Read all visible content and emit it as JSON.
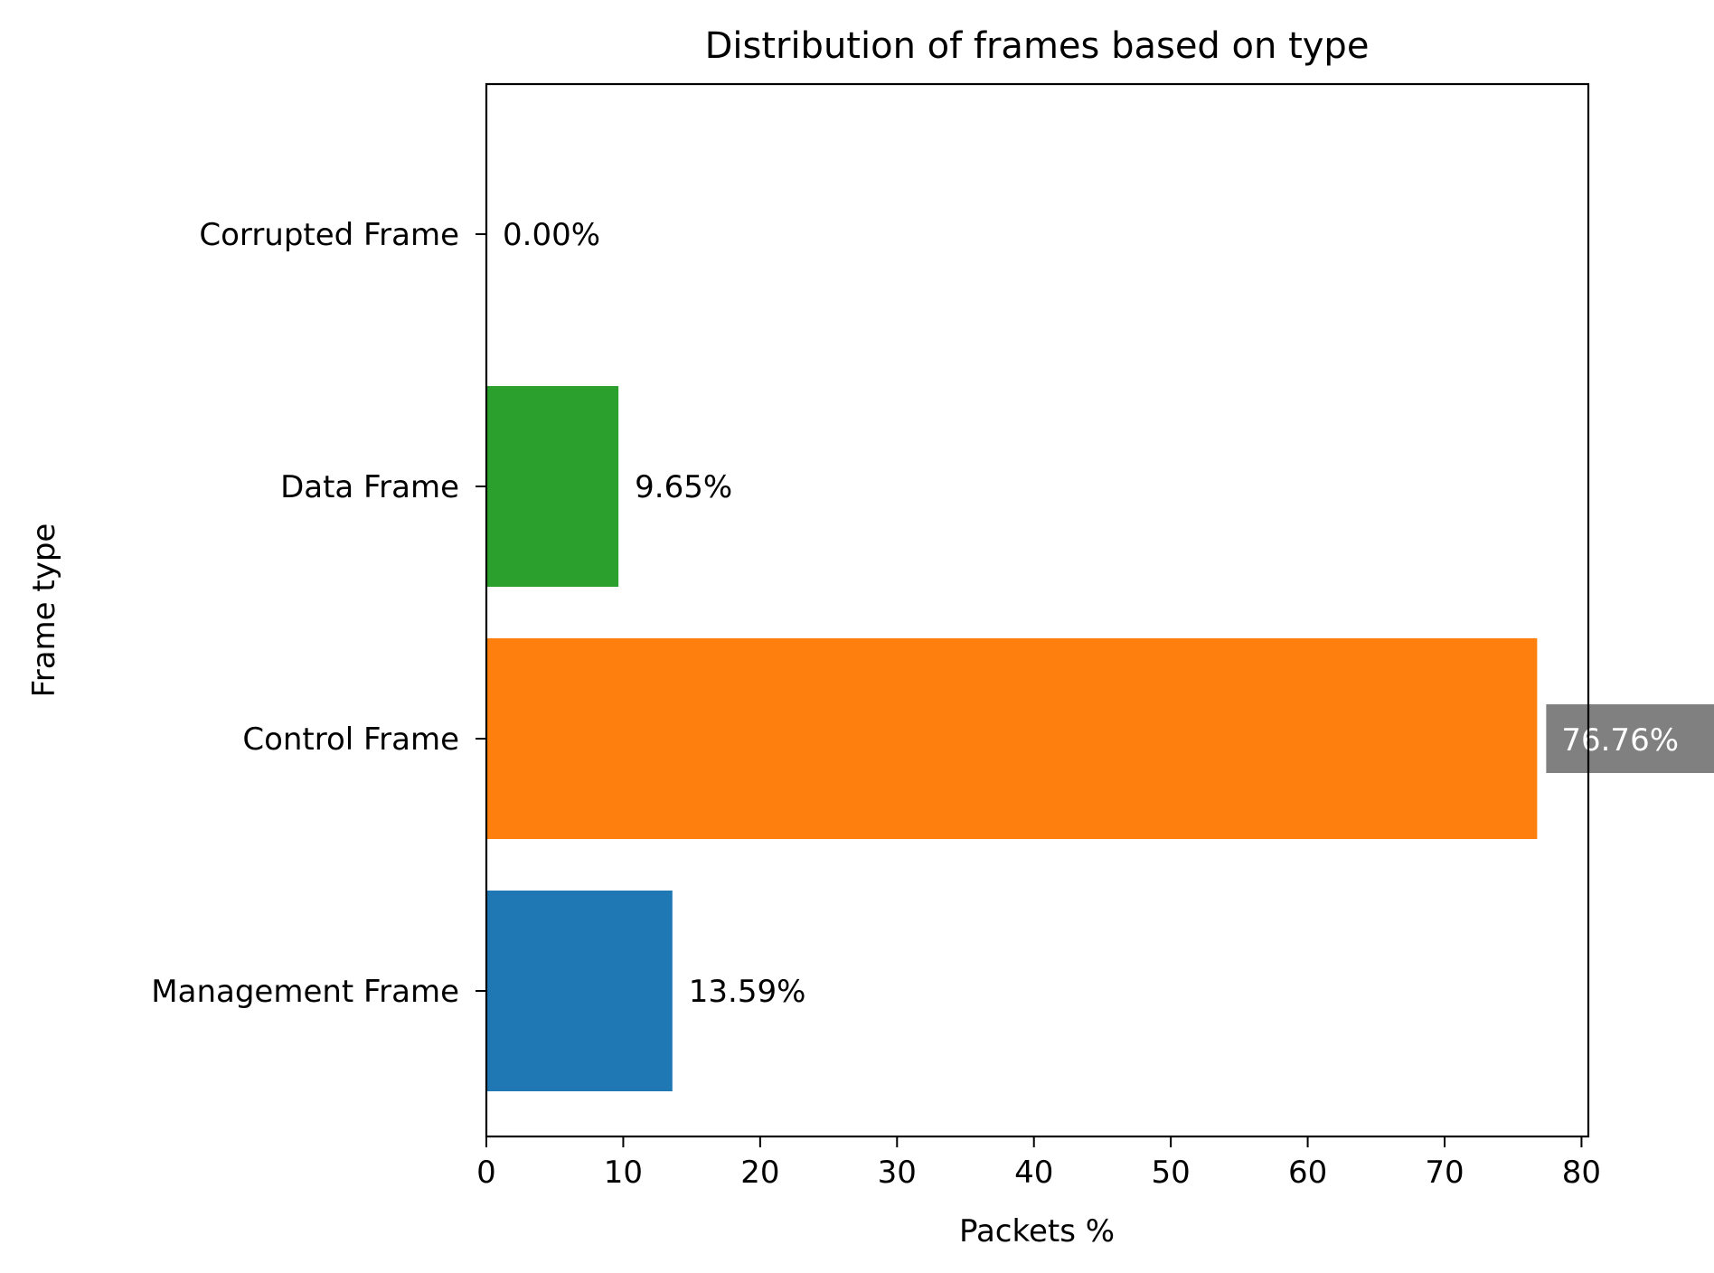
{
  "chart_data": {
    "type": "bar",
    "orientation": "horizontal",
    "title": "Distribution of frames based on type",
    "xlabel": "Packets %",
    "ylabel": "Frame type",
    "xlim": [
      0,
      80.5
    ],
    "xticks": [
      0,
      10,
      20,
      30,
      40,
      50,
      60,
      70,
      80
    ],
    "xtick_labels": [
      "0",
      "10",
      "20",
      "30",
      "40",
      "50",
      "60",
      "70",
      "80"
    ],
    "categories": [
      "Management Frame",
      "Control Frame",
      "Data Frame",
      "Corrupted Frame"
    ],
    "values": [
      13.59,
      76.76,
      9.65,
      0.0
    ],
    "value_labels": [
      "13.59%",
      "76.76%",
      "9.65%",
      "0.00%"
    ],
    "colors": [
      "#1f77b4",
      "#ff7f0e",
      "#2ca02c",
      "#d62728"
    ],
    "highlight": {
      "category": "Control Frame",
      "label_background": "#808080",
      "label_color": "#ffffff"
    },
    "grid": false,
    "legend": "none"
  }
}
